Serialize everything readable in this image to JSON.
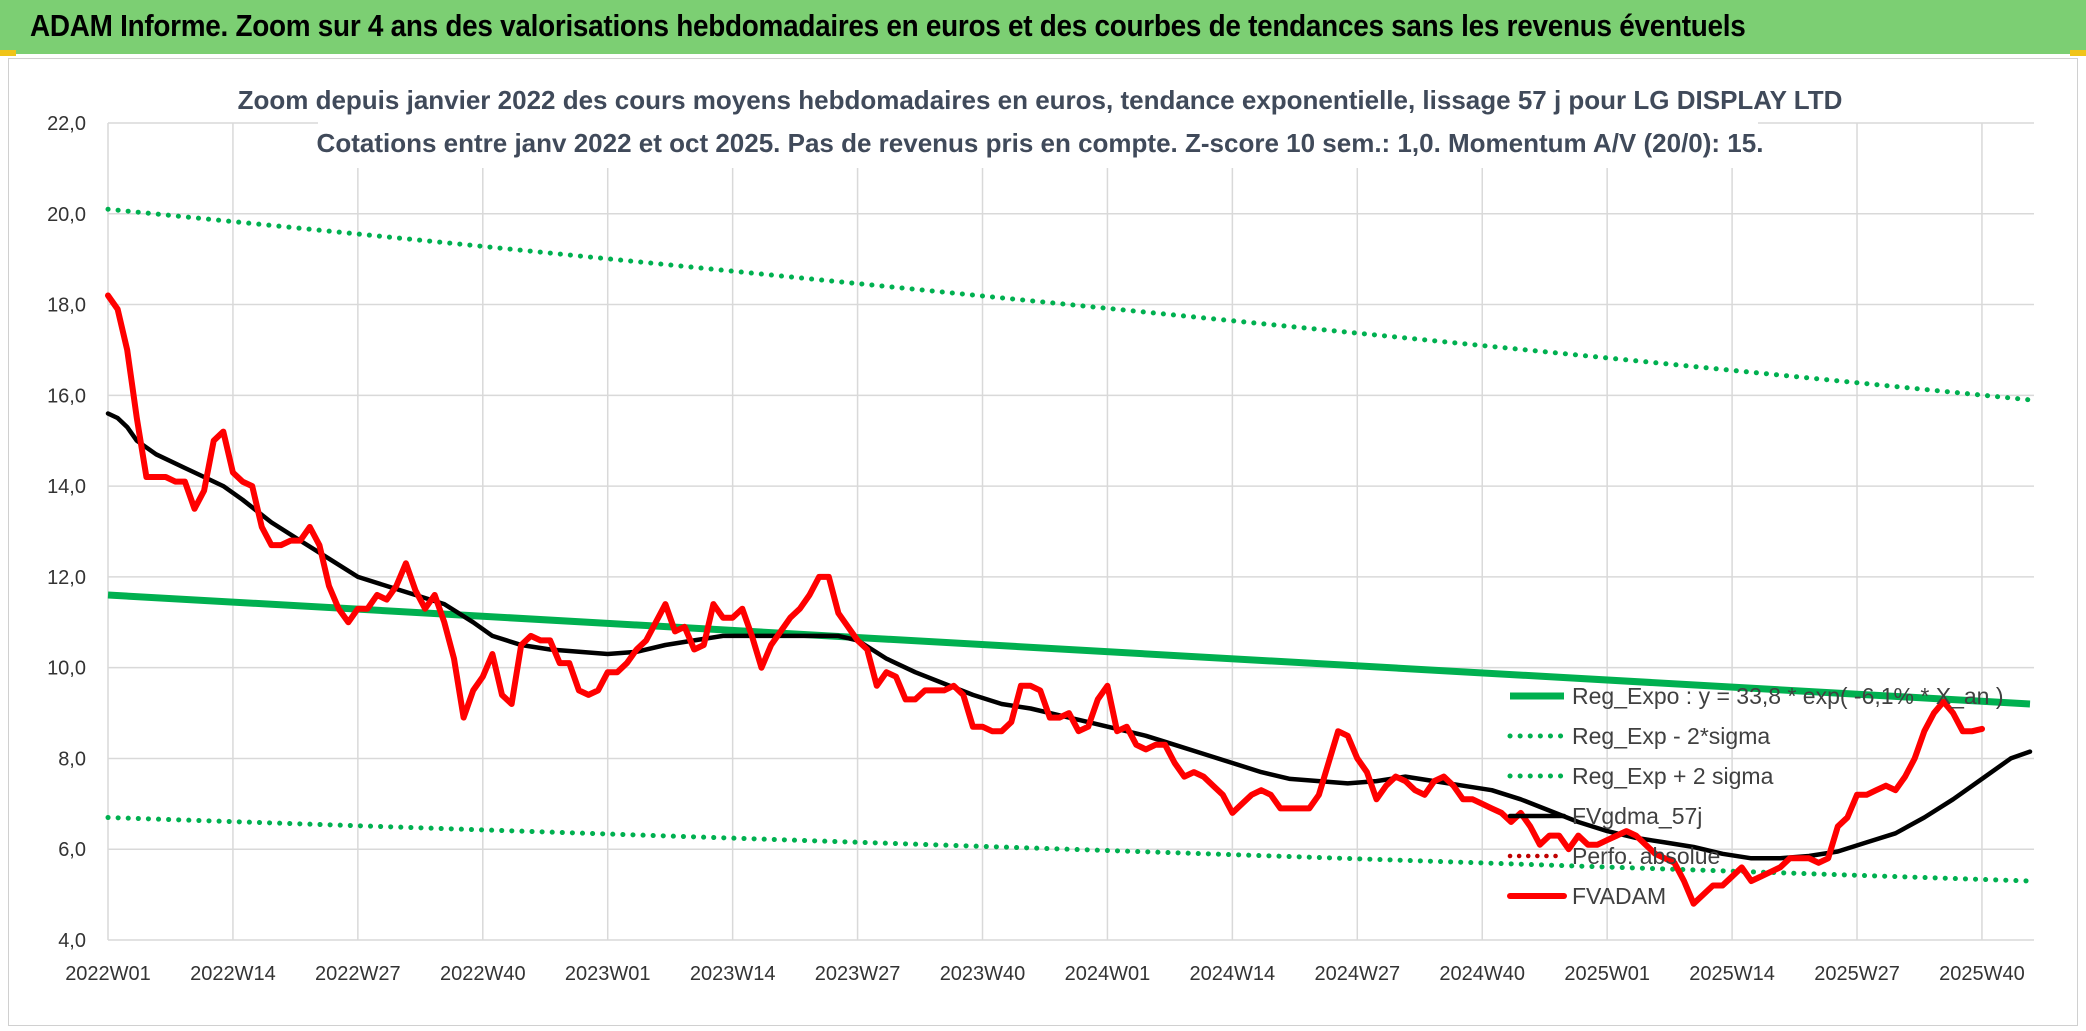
{
  "banner": {
    "title": "ADAM Informe. Zoom sur 4 ans des valorisations hebdomadaires en euros et des courbes de tendances sans les revenus éventuels"
  },
  "colors": {
    "banner_bg": "#7ccf73",
    "reg_expo": "#00b050",
    "sigma_lines": "#00b050",
    "fvgdma": "#000000",
    "perfo_absolue": "#c00000",
    "fvadam": "#ff0000"
  },
  "chart_data": {
    "type": "line",
    "title": "Zoom depuis janvier 2022 des cours moyens hebdomadaires en euros, tendance exponentielle, lissage 57 j pour LG DISPLAY LTD",
    "subtitle": "Cotations entre janv 2022 et oct 2025. Pas de revenus pris en compte. Z-score 10 sem.: 1,0. Momentum A/V (20/0): 15.",
    "ylim": [
      4.0,
      22.0
    ],
    "y_ticks": [
      "22,0",
      "20,0",
      "18,0",
      "16,0",
      "14,0",
      "12,0",
      "10,0",
      "8,0",
      "6,0",
      "4,0"
    ],
    "y_tick_values": [
      22,
      20,
      18,
      16,
      14,
      12,
      10,
      8,
      6,
      4
    ],
    "x_ticks": [
      "2022W01",
      "2022W14",
      "2022W27",
      "2022W40",
      "2023W01",
      "2023W14",
      "2023W27",
      "2023W40",
      "2024W01",
      "2024W14",
      "2024W27",
      "2024W40",
      "2025W01",
      "2025W14",
      "2025W27",
      "2025W40"
    ],
    "x_tick_weeks": [
      0,
      13,
      26,
      39,
      52,
      65,
      78,
      91,
      104,
      117,
      130,
      143,
      156,
      169,
      182,
      195
    ],
    "x_max_week": 200,
    "legend": {
      "position": "bottom-right",
      "entries": [
        {
          "label": "Reg_Expo : y = 33,8 * exp( -6,1% * X_an )",
          "style": "solid-green-thick"
        },
        {
          "label": "Reg_Exp - 2*sigma",
          "style": "dotted-green"
        },
        {
          "label": "Reg_Exp + 2 sigma",
          "style": "dotted-green"
        },
        {
          "label": "FVgdma_57j",
          "style": "solid-black"
        },
        {
          "label": "Perfo. absolue",
          "style": "dotted-red"
        },
        {
          "label": "FVADAM",
          "style": "solid-red-thick"
        }
      ]
    },
    "series": [
      {
        "name": "Reg_Expo : y = 33,8 * exp( -6,1% * X_an )",
        "points": [
          [
            0,
            11.6
          ],
          [
            200,
            9.2
          ]
        ]
      },
      {
        "name": "Reg_Exp - 2*sigma",
        "points": [
          [
            0,
            6.7
          ],
          [
            200,
            5.3
          ]
        ]
      },
      {
        "name": "Reg_Exp + 2 sigma",
        "points": [
          [
            0,
            20.1
          ],
          [
            200,
            15.9
          ]
        ]
      },
      {
        "name": "FVgdma_57j",
        "points": [
          [
            0,
            15.6
          ],
          [
            1,
            15.5
          ],
          [
            2,
            15.3
          ],
          [
            3,
            15.0
          ],
          [
            5,
            14.7
          ],
          [
            8,
            14.4
          ],
          [
            10,
            14.2
          ],
          [
            12,
            14.0
          ],
          [
            14,
            13.7
          ],
          [
            17,
            13.2
          ],
          [
            20,
            12.8
          ],
          [
            23,
            12.4
          ],
          [
            26,
            12.0
          ],
          [
            29,
            11.8
          ],
          [
            32,
            11.6
          ],
          [
            35,
            11.4
          ],
          [
            38,
            11.0
          ],
          [
            40,
            10.7
          ],
          [
            43,
            10.5
          ],
          [
            46,
            10.4
          ],
          [
            49,
            10.35
          ],
          [
            52,
            10.3
          ],
          [
            55,
            10.35
          ],
          [
            58,
            10.5
          ],
          [
            61,
            10.6
          ],
          [
            64,
            10.7
          ],
          [
            67,
            10.7
          ],
          [
            70,
            10.7
          ],
          [
            73,
            10.7
          ],
          [
            76,
            10.7
          ],
          [
            78,
            10.6
          ],
          [
            81,
            10.2
          ],
          [
            84,
            9.9
          ],
          [
            87,
            9.65
          ],
          [
            90,
            9.4
          ],
          [
            93,
            9.2
          ],
          [
            96,
            9.1
          ],
          [
            99,
            8.95
          ],
          [
            102,
            8.8
          ],
          [
            105,
            8.65
          ],
          [
            108,
            8.5
          ],
          [
            111,
            8.3
          ],
          [
            114,
            8.1
          ],
          [
            117,
            7.9
          ],
          [
            120,
            7.7
          ],
          [
            123,
            7.55
          ],
          [
            126,
            7.5
          ],
          [
            129,
            7.45
          ],
          [
            132,
            7.5
          ],
          [
            135,
            7.6
          ],
          [
            138,
            7.5
          ],
          [
            141,
            7.4
          ],
          [
            144,
            7.3
          ],
          [
            147,
            7.1
          ],
          [
            150,
            6.85
          ],
          [
            153,
            6.6
          ],
          [
            156,
            6.4
          ],
          [
            159,
            6.25
          ],
          [
            162,
            6.15
          ],
          [
            165,
            6.05
          ],
          [
            168,
            5.9
          ],
          [
            171,
            5.8
          ],
          [
            174,
            5.8
          ],
          [
            177,
            5.85
          ],
          [
            180,
            5.95
          ],
          [
            183,
            6.15
          ],
          [
            186,
            6.35
          ],
          [
            189,
            6.7
          ],
          [
            192,
            7.1
          ],
          [
            195,
            7.55
          ],
          [
            198,
            8.0
          ],
          [
            200,
            8.15
          ]
        ]
      },
      {
        "name": "FVADAM",
        "points": [
          [
            0,
            18.2
          ],
          [
            1,
            17.9
          ],
          [
            2,
            17.0
          ],
          [
            3,
            15.5
          ],
          [
            4,
            14.2
          ],
          [
            5,
            14.2
          ],
          [
            6,
            14.2
          ],
          [
            7,
            14.1
          ],
          [
            8,
            14.1
          ],
          [
            9,
            13.5
          ],
          [
            10,
            13.9
          ],
          [
            11,
            15.0
          ],
          [
            12,
            15.2
          ],
          [
            13,
            14.3
          ],
          [
            14,
            14.1
          ],
          [
            15,
            14.0
          ],
          [
            16,
            13.1
          ],
          [
            17,
            12.7
          ],
          [
            18,
            12.7
          ],
          [
            19,
            12.8
          ],
          [
            20,
            12.8
          ],
          [
            21,
            13.1
          ],
          [
            22,
            12.7
          ],
          [
            23,
            11.8
          ],
          [
            24,
            11.3
          ],
          [
            25,
            11.0
          ],
          [
            26,
            11.3
          ],
          [
            27,
            11.3
          ],
          [
            28,
            11.6
          ],
          [
            29,
            11.5
          ],
          [
            30,
            11.8
          ],
          [
            31,
            12.3
          ],
          [
            32,
            11.7
          ],
          [
            33,
            11.3
          ],
          [
            34,
            11.6
          ],
          [
            35,
            11.0
          ],
          [
            36,
            10.2
          ],
          [
            37,
            8.9
          ],
          [
            38,
            9.5
          ],
          [
            39,
            9.8
          ],
          [
            40,
            10.3
          ],
          [
            41,
            9.4
          ],
          [
            42,
            9.2
          ],
          [
            43,
            10.5
          ],
          [
            44,
            10.7
          ],
          [
            45,
            10.6
          ],
          [
            46,
            10.6
          ],
          [
            47,
            10.1
          ],
          [
            48,
            10.1
          ],
          [
            49,
            9.5
          ],
          [
            50,
            9.4
          ],
          [
            51,
            9.5
          ],
          [
            52,
            9.9
          ],
          [
            53,
            9.9
          ],
          [
            54,
            10.1
          ],
          [
            55,
            10.4
          ],
          [
            56,
            10.6
          ],
          [
            57,
            11.0
          ],
          [
            58,
            11.4
          ],
          [
            59,
            10.8
          ],
          [
            60,
            10.9
          ],
          [
            61,
            10.4
          ],
          [
            62,
            10.5
          ],
          [
            63,
            11.4
          ],
          [
            64,
            11.1
          ],
          [
            65,
            11.1
          ],
          [
            66,
            11.3
          ],
          [
            67,
            10.7
          ],
          [
            68,
            10.0
          ],
          [
            69,
            10.5
          ],
          [
            70,
            10.8
          ],
          [
            71,
            11.1
          ],
          [
            72,
            11.3
          ],
          [
            73,
            11.6
          ],
          [
            74,
            12.0
          ],
          [
            75,
            12.0
          ],
          [
            76,
            11.2
          ],
          [
            77,
            10.9
          ],
          [
            78,
            10.6
          ],
          [
            79,
            10.4
          ],
          [
            80,
            9.6
          ],
          [
            81,
            9.9
          ],
          [
            82,
            9.8
          ],
          [
            83,
            9.3
          ],
          [
            84,
            9.3
          ],
          [
            85,
            9.5
          ],
          [
            86,
            9.5
          ],
          [
            87,
            9.5
          ],
          [
            88,
            9.6
          ],
          [
            89,
            9.4
          ],
          [
            90,
            8.7
          ],
          [
            91,
            8.7
          ],
          [
            92,
            8.6
          ],
          [
            93,
            8.6
          ],
          [
            94,
            8.8
          ],
          [
            95,
            9.6
          ],
          [
            96,
            9.6
          ],
          [
            97,
            9.5
          ],
          [
            98,
            8.9
          ],
          [
            99,
            8.9
          ],
          [
            100,
            9.0
          ],
          [
            101,
            8.6
          ],
          [
            102,
            8.7
          ],
          [
            103,
            9.3
          ],
          [
            104,
            9.6
          ],
          [
            105,
            8.6
          ],
          [
            106,
            8.7
          ],
          [
            107,
            8.3
          ],
          [
            108,
            8.2
          ],
          [
            109,
            8.3
          ],
          [
            110,
            8.3
          ],
          [
            111,
            7.9
          ],
          [
            112,
            7.6
          ],
          [
            113,
            7.7
          ],
          [
            114,
            7.6
          ],
          [
            115,
            7.4
          ],
          [
            116,
            7.2
          ],
          [
            117,
            6.8
          ],
          [
            118,
            7.0
          ],
          [
            119,
            7.2
          ],
          [
            120,
            7.3
          ],
          [
            121,
            7.2
          ],
          [
            122,
            6.9
          ],
          [
            123,
            6.9
          ],
          [
            124,
            6.9
          ],
          [
            125,
            6.9
          ],
          [
            126,
            7.2
          ],
          [
            127,
            7.9
          ],
          [
            128,
            8.6
          ],
          [
            129,
            8.5
          ],
          [
            130,
            8.0
          ],
          [
            131,
            7.7
          ],
          [
            132,
            7.1
          ],
          [
            133,
            7.4
          ],
          [
            134,
            7.6
          ],
          [
            135,
            7.5
          ],
          [
            136,
            7.3
          ],
          [
            137,
            7.2
          ],
          [
            138,
            7.5
          ],
          [
            139,
            7.6
          ],
          [
            140,
            7.4
          ],
          [
            141,
            7.1
          ],
          [
            142,
            7.1
          ],
          [
            143,
            7.0
          ],
          [
            144,
            6.9
          ],
          [
            145,
            6.8
          ],
          [
            146,
            6.6
          ],
          [
            147,
            6.8
          ],
          [
            148,
            6.5
          ],
          [
            149,
            6.1
          ],
          [
            150,
            6.3
          ],
          [
            151,
            6.3
          ],
          [
            152,
            6.0
          ],
          [
            153,
            6.3
          ],
          [
            154,
            6.1
          ],
          [
            155,
            6.1
          ],
          [
            156,
            6.2
          ],
          [
            157,
            6.3
          ],
          [
            158,
            6.4
          ],
          [
            159,
            6.3
          ],
          [
            160,
            6.1
          ],
          [
            161,
            5.9
          ],
          [
            162,
            5.8
          ],
          [
            163,
            5.7
          ],
          [
            164,
            5.3
          ],
          [
            165,
            4.8
          ],
          [
            166,
            5.0
          ],
          [
            167,
            5.2
          ],
          [
            168,
            5.2
          ],
          [
            169,
            5.4
          ],
          [
            170,
            5.6
          ],
          [
            171,
            5.3
          ],
          [
            172,
            5.4
          ],
          [
            173,
            5.5
          ],
          [
            174,
            5.6
          ],
          [
            175,
            5.8
          ],
          [
            176,
            5.8
          ],
          [
            177,
            5.8
          ],
          [
            178,
            5.7
          ],
          [
            179,
            5.8
          ],
          [
            180,
            6.5
          ],
          [
            181,
            6.7
          ],
          [
            182,
            7.2
          ],
          [
            183,
            7.2
          ],
          [
            184,
            7.3
          ],
          [
            185,
            7.4
          ],
          [
            186,
            7.3
          ],
          [
            187,
            7.6
          ],
          [
            188,
            8.0
          ],
          [
            189,
            8.6
          ],
          [
            190,
            9.0
          ],
          [
            191,
            9.25
          ],
          [
            192,
            9.0
          ],
          [
            193,
            8.6
          ],
          [
            194,
            8.6
          ],
          [
            195,
            8.65
          ]
        ]
      }
    ]
  }
}
